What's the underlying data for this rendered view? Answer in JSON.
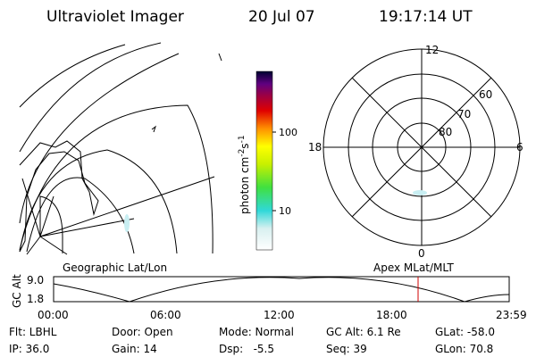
{
  "header": {
    "title": "Ultraviolet Imager",
    "date": "20 Jul 07",
    "time": "19:17:14 UT"
  },
  "colorbar": {
    "unit": "photon cm",
    "exp1": "-2",
    "unit2": "s",
    "exp2": "-1",
    "ticks": [
      "100",
      "10"
    ]
  },
  "polar": {
    "clock": [
      "12",
      "18",
      "6",
      "0"
    ],
    "lat": [
      "60",
      "70",
      "80"
    ]
  },
  "timeline": {
    "left_title": "Geographic Lat/Lon",
    "right_title": "Apex MLat/MLT",
    "y_label": "GC Alt",
    "y_ticks": [
      "9.0",
      "1.8"
    ],
    "x_ticks": [
      "00:00",
      "06:00",
      "12:00",
      "18:00",
      "23:59"
    ]
  },
  "footer": {
    "rows": [
      [
        "Flt: LBHL",
        "Door: Open",
        "Mode: Normal",
        "GC Alt: 6.1 Re",
        "GLat: -58.0"
      ],
      [
        "IP: 36.0",
        "Gain: 14",
        "Dsp:   -5.5",
        "Seq: 39",
        "GLon: 70.8"
      ]
    ]
  }
}
